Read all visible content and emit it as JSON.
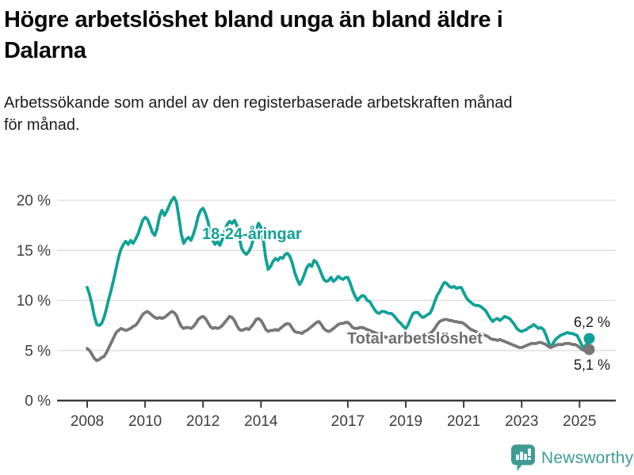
{
  "header": {
    "title": "Högre arbetslöshet bland unga än bland äldre i\nDalarna",
    "subtitle": "Arbetssökande som andel av den registerbaserade arbetskraften månad\nför månad."
  },
  "chart_data": {
    "type": "line",
    "unit": "%",
    "grid": true,
    "x_axis": {
      "tick_years": [
        2008,
        2010,
        2012,
        2014,
        2017,
        2019,
        2021,
        2023,
        2025
      ]
    },
    "y_axis": {
      "min": 0,
      "max": 20.5,
      "ticks": [
        {
          "value": 0,
          "label": "0 %"
        },
        {
          "value": 5,
          "label": "5 %"
        },
        {
          "value": 10,
          "label": "10 %"
        },
        {
          "value": 15,
          "label": "15 %"
        },
        {
          "value": 20,
          "label": "20 %"
        }
      ]
    },
    "series": [
      {
        "id": "youth",
        "name": "18-24-åringar",
        "color": "#11a196",
        "start_year": 2008,
        "points_per_year": 12,
        "values": [
          11.3,
          10.6,
          9.6,
          8.4,
          7.6,
          7.5,
          7.7,
          8.3,
          9.2,
          10.2,
          11.1,
          12.1,
          13.2,
          14.3,
          15.1,
          15.6,
          15.9,
          15.6,
          16.0,
          15.7,
          16.1,
          16.6,
          17.3,
          18.0,
          18.3,
          18.1,
          17.5,
          16.8,
          16.5,
          17.2,
          18.4,
          19.0,
          18.5,
          18.9,
          19.5,
          20.0,
          20.3,
          19.8,
          18.3,
          16.6,
          15.7,
          16.1,
          16.3,
          16.0,
          16.6,
          17.4,
          18.4,
          19.0,
          19.2,
          18.7,
          17.9,
          16.8,
          16.0,
          15.6,
          15.9,
          15.5,
          16.1,
          16.9,
          17.6,
          17.9,
          17.7,
          18.0,
          17.5,
          16.3,
          15.2,
          14.8,
          14.6,
          14.9,
          15.4,
          16.3,
          17.1,
          17.7,
          17.3,
          16.0,
          14.2,
          13.1,
          13.4,
          13.9,
          14.2,
          14.0,
          14.3,
          14.2,
          14.6,
          14.7,
          14.4,
          13.7,
          12.8,
          12.1,
          11.6,
          12.0,
          12.6,
          13.3,
          13.6,
          13.4,
          14.0,
          13.8,
          13.3,
          12.7,
          12.1,
          11.9,
          12.0,
          12.3,
          11.9,
          12.1,
          12.4,
          12.2,
          12.1,
          12.3,
          12.3,
          11.7,
          11.0,
          10.4,
          10.0,
          10.3,
          10.5,
          10.4,
          10.0,
          9.9,
          9.5,
          9.1,
          8.8,
          8.7,
          8.9,
          8.9,
          8.8,
          8.7,
          8.7,
          8.5,
          8.2,
          7.9,
          7.7,
          7.4,
          7.2,
          7.6,
          8.2,
          8.7,
          8.8,
          8.8,
          8.5,
          8.3,
          8.4,
          8.6,
          8.7,
          9.2,
          9.9,
          10.5,
          10.9,
          11.4,
          11.8,
          11.7,
          11.4,
          11.3,
          11.4,
          11.2,
          11.3,
          11.3,
          10.8,
          10.3,
          10.0,
          9.8,
          9.6,
          9.5,
          9.5,
          9.4,
          9.2,
          9.0,
          8.6,
          8.2,
          7.9,
          8.1,
          8.2,
          8.0,
          8.2,
          8.4,
          8.3,
          8.2,
          7.9,
          7.6,
          7.2,
          7.0,
          6.9,
          7.0,
          7.1,
          7.3,
          7.4,
          7.6,
          7.4,
          7.2,
          7.3,
          7.1,
          6.6,
          5.9,
          5.3,
          5.7,
          6.1,
          6.3,
          6.5,
          6.6,
          6.7,
          6.8,
          6.7,
          6.7,
          6.6,
          6.5,
          6.0,
          5.5,
          5.3,
          5.7,
          6.2
        ]
      },
      {
        "id": "total",
        "name": "Total arbetslöshet",
        "color": "#777777",
        "start_year": 2008,
        "points_per_year": 12,
        "values": [
          5.2,
          5.0,
          4.6,
          4.2,
          4.0,
          4.1,
          4.3,
          4.4,
          4.8,
          5.3,
          5.8,
          6.3,
          6.8,
          7.0,
          7.2,
          7.1,
          7.0,
          7.1,
          7.2,
          7.4,
          7.5,
          7.8,
          8.2,
          8.6,
          8.8,
          8.9,
          8.7,
          8.5,
          8.3,
          8.2,
          8.3,
          8.2,
          8.3,
          8.5,
          8.7,
          8.9,
          8.8,
          8.5,
          7.9,
          7.4,
          7.2,
          7.3,
          7.3,
          7.2,
          7.4,
          7.7,
          8.1,
          8.3,
          8.4,
          8.2,
          7.8,
          7.4,
          7.2,
          7.3,
          7.2,
          7.3,
          7.5,
          7.8,
          8.1,
          8.4,
          8.3,
          8.0,
          7.5,
          7.1,
          7.0,
          7.1,
          7.2,
          7.1,
          7.4,
          7.7,
          8.1,
          8.2,
          8.0,
          7.6,
          7.1,
          6.9,
          7.0,
          7.0,
          7.1,
          7.0,
          7.2,
          7.4,
          7.6,
          7.7,
          7.6,
          7.2,
          6.9,
          6.8,
          6.8,
          6.7,
          6.9,
          7.0,
          7.2,
          7.4,
          7.6,
          7.8,
          7.9,
          7.6,
          7.2,
          7.0,
          6.9,
          7.0,
          7.2,
          7.4,
          7.6,
          7.7,
          7.7,
          7.8,
          7.8,
          7.6,
          7.3,
          7.2,
          7.2,
          7.3,
          7.3,
          7.2,
          7.1,
          7.0,
          6.9,
          6.8,
          6.7,
          6.6,
          6.5,
          6.4,
          6.3,
          6.3,
          6.2,
          6.2,
          6.1,
          6.1,
          6.2,
          6.2,
          6.3,
          6.4,
          6.4,
          6.5,
          6.4,
          6.4,
          6.4,
          6.5,
          6.5,
          6.6,
          6.7,
          6.9,
          7.2,
          7.6,
          7.9,
          8.0,
          8.1,
          8.1,
          8.0,
          8.0,
          7.9,
          7.9,
          7.8,
          7.8,
          7.7,
          7.5,
          7.3,
          7.1,
          7.0,
          6.9,
          6.8,
          6.7,
          6.6,
          6.5,
          6.4,
          6.2,
          6.1,
          6.1,
          6.0,
          6.1,
          6.0,
          5.9,
          5.8,
          5.7,
          5.6,
          5.5,
          5.4,
          5.3,
          5.3,
          5.4,
          5.5,
          5.6,
          5.7,
          5.7,
          5.7,
          5.8,
          5.8,
          5.7,
          5.6,
          5.4,
          5.3,
          5.4,
          5.5,
          5.6,
          5.6,
          5.6,
          5.7,
          5.7,
          5.7,
          5.6,
          5.6,
          5.5,
          5.3,
          5.1,
          5.0,
          5.0,
          5.1
        ]
      }
    ],
    "end_labels": [
      {
        "series": "youth",
        "text": "6,2 %"
      },
      {
        "series": "total",
        "text": "5,1 %"
      }
    ]
  },
  "footer": {
    "brand": "Newsworthy"
  },
  "colors": {
    "accent_teal": "#11a196",
    "line_gray": "#777777",
    "axis": "#3d3d3d",
    "gridline": "#dcdcdc",
    "brand_teal": "#3e9c94"
  }
}
